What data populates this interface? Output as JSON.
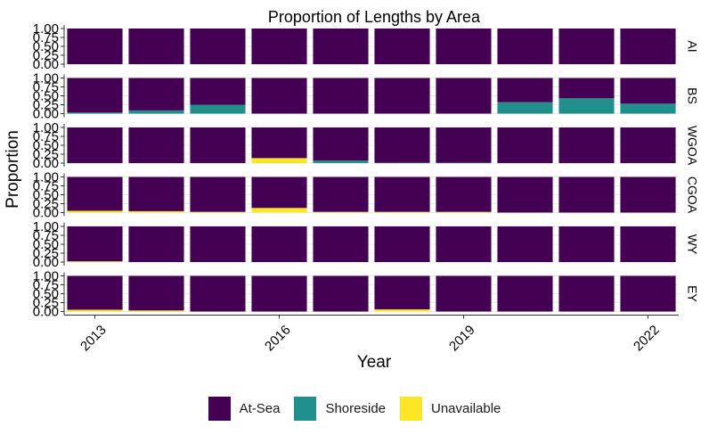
{
  "chart_data": {
    "type": "bar",
    "stacked": true,
    "faceted": true,
    "title": "Proportion of Lengths by Area",
    "xlabel": "Year",
    "ylabel": "Proportion",
    "ylim": [
      0,
      1
    ],
    "y_ticks": [
      "0.00",
      "0.25",
      "0.50",
      "0.75",
      "1.00"
    ],
    "x_ticks": [
      "2013",
      "2016",
      "2019",
      "2022"
    ],
    "categories": [
      2013,
      2014,
      2015,
      2016,
      2017,
      2018,
      2019,
      2020,
      2021,
      2022
    ],
    "legend_position": "bottom",
    "series": [
      {
        "name": "At-Sea",
        "color": "#440154"
      },
      {
        "name": "Shoreside",
        "color": "#21908C"
      },
      {
        "name": "Unavailable",
        "color": "#FDE725"
      }
    ],
    "panels": [
      {
        "label": "AI",
        "values": {
          "At-Sea": [
            1,
            1,
            1,
            1,
            1,
            1,
            1,
            1,
            1,
            1
          ],
          "Shoreside": [
            0,
            0,
            0,
            0,
            0,
            0,
            0,
            0,
            0,
            0
          ],
          "Unavailable": [
            0,
            0,
            0,
            0,
            0,
            0,
            0,
            0,
            0,
            0
          ]
        }
      },
      {
        "label": "BS",
        "values": {
          "At-Sea": [
            0.97,
            0.91,
            0.75,
            1,
            1,
            1,
            1,
            0.68,
            0.57,
            0.72
          ],
          "Shoreside": [
            0.03,
            0.09,
            0.25,
            0,
            0,
            0,
            0,
            0.32,
            0.43,
            0.28
          ],
          "Unavailable": [
            0,
            0,
            0,
            0,
            0,
            0,
            0,
            0,
            0,
            0
          ]
        }
      },
      {
        "label": "WGOA",
        "values": {
          "At-Sea": [
            1,
            1,
            1,
            0.86,
            0.93,
            0.99,
            0.99,
            1,
            1,
            1
          ],
          "Shoreside": [
            0,
            0,
            0,
            0,
            0.07,
            0.01,
            0.01,
            0,
            0,
            0
          ],
          "Unavailable": [
            0,
            0,
            0,
            0.14,
            0,
            0,
            0,
            0,
            0,
            0
          ]
        }
      },
      {
        "label": "CGOA",
        "values": {
          "At-Sea": [
            0.95,
            0.96,
            0.98,
            0.87,
            0.98,
            0.98,
            0.98,
            1,
            1,
            1
          ],
          "Shoreside": [
            0,
            0,
            0,
            0,
            0,
            0,
            0,
            0,
            0,
            0
          ],
          "Unavailable": [
            0.05,
            0.04,
            0.02,
            0.13,
            0.02,
            0.02,
            0.02,
            0,
            0,
            0
          ]
        }
      },
      {
        "label": "WY",
        "values": {
          "At-Sea": [
            0.98,
            1,
            1,
            1,
            1,
            1,
            1,
            1,
            1,
            1
          ],
          "Shoreside": [
            0,
            0,
            0,
            0,
            0,
            0,
            0,
            0,
            0,
            0
          ],
          "Unavailable": [
            0.02,
            0,
            0,
            0,
            0,
            0,
            0,
            0,
            0,
            0
          ]
        }
      },
      {
        "label": "EY",
        "values": {
          "At-Sea": [
            0.95,
            0.97,
            1,
            1,
            1,
            0.94,
            1,
            1,
            1,
            1
          ],
          "Shoreside": [
            0,
            0,
            0,
            0,
            0,
            0,
            0,
            0,
            0,
            0
          ],
          "Unavailable": [
            0.05,
            0.03,
            0,
            0,
            0,
            0.06,
            0,
            0,
            0,
            0
          ]
        }
      }
    ]
  }
}
